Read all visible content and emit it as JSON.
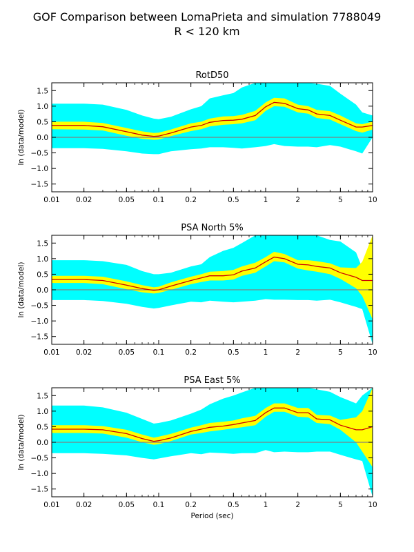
{
  "figure": {
    "title_line1": "GOF Comparison between LomaPrieta and simulation 7788049",
    "title_line2": "R < 120 km"
  },
  "colors": {
    "outer_band": "#00ffff",
    "inner_band": "#ffff00",
    "mean_line": "#cc0000",
    "zero_line": "#808080"
  },
  "chart_data": [
    {
      "type": "area",
      "title": "RotD50",
      "xlabel": "",
      "ylabel": "ln (data/model)",
      "xscale": "log",
      "xlim": [
        0.01,
        10
      ],
      "ylim": [
        -1.75,
        1.75
      ],
      "xticks": [
        0.01,
        0.02,
        0.05,
        0.1,
        0.2,
        0.5,
        1,
        2,
        5,
        10
      ],
      "xtick_labels": [
        "0.01",
        "0.02",
        "0.05",
        "0.1",
        "0.2",
        "0.5",
        "1",
        "2",
        "5",
        "10"
      ],
      "yticks": [
        -1.5,
        -1.0,
        -0.5,
        0.0,
        0.5,
        1.0,
        1.5
      ],
      "ytick_labels": [
        "−1.5",
        "−1.0",
        "−0.5",
        "0.0",
        "0.5",
        "1.0",
        "1.5"
      ],
      "x": [
        0.01,
        0.02,
        0.03,
        0.05,
        0.07,
        0.09,
        0.1,
        0.13,
        0.2,
        0.25,
        0.3,
        0.4,
        0.5,
        0.6,
        0.8,
        1.0,
        1.2,
        1.5,
        2.0,
        2.5,
        3.0,
        4.0,
        5.0,
        7.0,
        8.0,
        10.0
      ],
      "series": [
        {
          "values": [
            0.38,
            0.38,
            0.34,
            0.18,
            0.07,
            0.03,
            0.04,
            0.14,
            0.33,
            0.38,
            0.48,
            0.54,
            0.55,
            0.58,
            0.7,
            0.98,
            1.12,
            1.09,
            0.92,
            0.88,
            0.75,
            0.7,
            0.55,
            0.33,
            0.33,
            0.38
          ]
        }
      ],
      "inner_band_low": [
        0.26,
        0.25,
        0.22,
        0.05,
        -0.05,
        -0.08,
        -0.07,
        0.04,
        0.2,
        0.26,
        0.35,
        0.4,
        0.42,
        0.45,
        0.55,
        0.85,
        1.0,
        0.98,
        0.8,
        0.76,
        0.62,
        0.57,
        0.42,
        0.2,
        0.15,
        0.25
      ],
      "inner_band_high": [
        0.5,
        0.5,
        0.46,
        0.3,
        0.19,
        0.14,
        0.15,
        0.25,
        0.45,
        0.5,
        0.6,
        0.67,
        0.68,
        0.72,
        0.85,
        1.12,
        1.27,
        1.25,
        1.05,
        1.0,
        0.88,
        0.84,
        0.7,
        0.45,
        0.42,
        0.5
      ],
      "outer_band_low": [
        -0.35,
        -0.35,
        -0.37,
        -0.45,
        -0.52,
        -0.54,
        -0.54,
        -0.45,
        -0.38,
        -0.36,
        -0.32,
        -0.32,
        -0.34,
        -0.36,
        -0.32,
        -0.28,
        -0.22,
        -0.28,
        -0.3,
        -0.3,
        -0.32,
        -0.25,
        -0.3,
        -0.45,
        -0.52,
        0.0
      ],
      "outer_band_high": [
        1.08,
        1.08,
        1.05,
        0.88,
        0.7,
        0.6,
        0.58,
        0.66,
        0.9,
        1.0,
        1.25,
        1.35,
        1.42,
        1.6,
        1.75,
        1.75,
        1.75,
        1.75,
        1.75,
        1.75,
        1.72,
        1.65,
        1.4,
        1.05,
        0.8,
        0.7
      ]
    },
    {
      "type": "area",
      "title": "PSA North 5%",
      "xlabel": "",
      "ylabel": "ln (data/model)",
      "xscale": "log",
      "xlim": [
        0.01,
        10
      ],
      "ylim": [
        -1.75,
        1.75
      ],
      "xticks": [
        0.01,
        0.02,
        0.05,
        0.1,
        0.2,
        0.5,
        1,
        2,
        5,
        10
      ],
      "xtick_labels": [
        "0.01",
        "0.02",
        "0.05",
        "0.1",
        "0.2",
        "0.5",
        "1",
        "2",
        "5",
        "10"
      ],
      "yticks": [
        -1.5,
        -1.0,
        -0.5,
        0.0,
        0.5,
        1.0,
        1.5
      ],
      "ytick_labels": [
        "−1.5",
        "−1.0",
        "−0.5",
        "0.0",
        "0.5",
        "1.0",
        "1.5"
      ],
      "x": [
        0.01,
        0.02,
        0.03,
        0.05,
        0.07,
        0.09,
        0.1,
        0.13,
        0.2,
        0.25,
        0.3,
        0.4,
        0.5,
        0.6,
        0.8,
        1.0,
        1.2,
        1.5,
        2.0,
        2.5,
        3.0,
        4.0,
        5.0,
        7.0,
        8.0,
        10.0
      ],
      "series": [
        {
          "values": [
            0.33,
            0.33,
            0.3,
            0.15,
            0.04,
            -0.02,
            0.0,
            0.12,
            0.3,
            0.38,
            0.45,
            0.45,
            0.48,
            0.6,
            0.7,
            0.9,
            1.05,
            1.0,
            0.82,
            0.8,
            0.75,
            0.7,
            0.55,
            0.4,
            0.3,
            0.3
          ]
        }
      ],
      "inner_band_low": [
        0.22,
        0.22,
        0.18,
        0.02,
        -0.08,
        -0.12,
        -0.1,
        0.0,
        0.18,
        0.25,
        0.3,
        0.3,
        0.33,
        0.45,
        0.55,
        0.75,
        0.92,
        0.88,
        0.68,
        0.62,
        0.58,
        0.5,
        0.35,
        0.05,
        -0.2,
        -0.95
      ],
      "inner_band_high": [
        0.45,
        0.45,
        0.42,
        0.27,
        0.15,
        0.08,
        0.1,
        0.24,
        0.42,
        0.5,
        0.58,
        0.6,
        0.64,
        0.75,
        0.87,
        1.05,
        1.22,
        1.15,
        0.95,
        0.95,
        0.92,
        0.85,
        0.72,
        0.7,
        0.9,
        1.75
      ],
      "outer_band_low": [
        -0.33,
        -0.33,
        -0.36,
        -0.45,
        -0.55,
        -0.6,
        -0.58,
        -0.5,
        -0.38,
        -0.4,
        -0.35,
        -0.38,
        -0.4,
        -0.38,
        -0.35,
        -0.3,
        -0.32,
        -0.32,
        -0.33,
        -0.33,
        -0.35,
        -0.32,
        -0.4,
        -0.55,
        -0.62,
        -1.75
      ],
      "outer_band_high": [
        0.95,
        0.95,
        0.92,
        0.8,
        0.6,
        0.5,
        0.5,
        0.55,
        0.75,
        0.82,
        1.05,
        1.25,
        1.35,
        1.5,
        1.75,
        1.75,
        1.75,
        1.75,
        1.75,
        1.75,
        1.75,
        1.6,
        1.55,
        1.2,
        0.7,
        1.75
      ]
    },
    {
      "type": "area",
      "title": "PSA East 5%",
      "xlabel": "Period (sec)",
      "ylabel": "ln (data/model)",
      "xscale": "log",
      "xlim": [
        0.01,
        10
      ],
      "ylim": [
        -1.75,
        1.75
      ],
      "xticks": [
        0.01,
        0.02,
        0.05,
        0.1,
        0.2,
        0.5,
        1,
        2,
        5,
        10
      ],
      "xtick_labels": [
        "0.01",
        "0.02",
        "0.05",
        "0.1",
        "0.2",
        "0.5",
        "1",
        "2",
        "5",
        "10"
      ],
      "yticks": [
        -1.5,
        -1.0,
        -0.5,
        0.0,
        0.5,
        1.0,
        1.5
      ],
      "ytick_labels": [
        "−1.5",
        "−1.0",
        "−0.5",
        "0.0",
        "0.5",
        "1.0",
        "1.5"
      ],
      "x": [
        0.01,
        0.02,
        0.03,
        0.05,
        0.07,
        0.09,
        0.1,
        0.13,
        0.2,
        0.25,
        0.3,
        0.4,
        0.5,
        0.6,
        0.8,
        1.0,
        1.2,
        1.5,
        2.0,
        2.5,
        3.0,
        4.0,
        5.0,
        7.0,
        8.0,
        10.0
      ],
      "series": [
        {
          "values": [
            0.42,
            0.42,
            0.4,
            0.28,
            0.12,
            0.03,
            0.05,
            0.14,
            0.35,
            0.42,
            0.48,
            0.52,
            0.57,
            0.62,
            0.7,
            0.95,
            1.1,
            1.1,
            0.95,
            0.95,
            0.75,
            0.72,
            0.55,
            0.4,
            0.4,
            0.5
          ]
        }
      ],
      "inner_band_low": [
        0.3,
        0.3,
        0.28,
        0.15,
        0.0,
        -0.08,
        -0.06,
        0.04,
        0.25,
        0.3,
        0.35,
        0.4,
        0.45,
        0.48,
        0.55,
        0.82,
        0.98,
        0.98,
        0.82,
        0.8,
        0.62,
        0.58,
        0.4,
        0.0,
        -0.3,
        -0.8
      ],
      "inner_band_high": [
        0.55,
        0.55,
        0.52,
        0.4,
        0.25,
        0.15,
        0.18,
        0.27,
        0.47,
        0.55,
        0.62,
        0.66,
        0.7,
        0.77,
        0.85,
        1.1,
        1.25,
        1.25,
        1.1,
        1.1,
        0.88,
        0.86,
        0.72,
        0.8,
        1.0,
        1.75
      ],
      "outer_band_low": [
        -0.35,
        -0.35,
        -0.37,
        -0.42,
        -0.5,
        -0.55,
        -0.52,
        -0.45,
        -0.35,
        -0.38,
        -0.33,
        -0.35,
        -0.37,
        -0.35,
        -0.35,
        -0.25,
        -0.32,
        -0.3,
        -0.32,
        -0.32,
        -0.3,
        -0.3,
        -0.4,
        -0.55,
        -0.6,
        -1.75
      ],
      "outer_band_high": [
        1.18,
        1.18,
        1.12,
        0.95,
        0.75,
        0.6,
        0.62,
        0.7,
        0.92,
        1.05,
        1.22,
        1.4,
        1.5,
        1.6,
        1.75,
        1.75,
        1.75,
        1.75,
        1.75,
        1.75,
        1.7,
        1.62,
        1.45,
        1.25,
        1.5,
        1.75
      ]
    }
  ]
}
